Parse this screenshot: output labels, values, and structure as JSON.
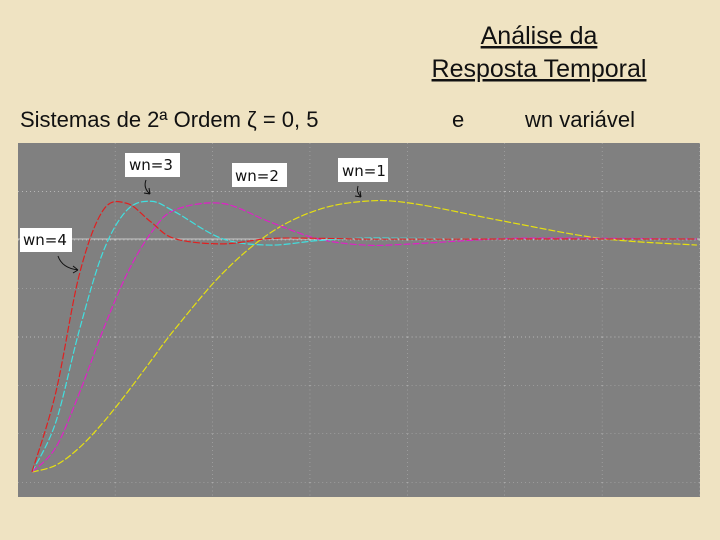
{
  "slide": {
    "title_lines": [
      "Análise da",
      "Resposta Temporal"
    ],
    "subtitle": "Sistemas de 2ª Ordem  ζ = 0, 5",
    "conjunction": "e",
    "variable_note": "wn variável"
  },
  "chart_data": {
    "type": "line",
    "x": [
      0,
      0.25,
      0.5,
      0.75,
      1,
      1.25,
      1.5,
      2,
      2.5,
      3,
      3.5,
      4,
      5,
      6,
      7
    ],
    "xlim": [
      -0.147,
      7.032
    ],
    "ylim": [
      -0.107,
      1.412
    ],
    "series": [
      {
        "name": "wn=1",
        "color": "#e6e010",
        "values": [
          0,
          0.029,
          0.105,
          0.213,
          0.34,
          0.476,
          0.611,
          0.85,
          1.024,
          1.124,
          1.162,
          1.153,
          1.074,
          1.002,
          0.974
        ]
      },
      {
        "name": "wn=2",
        "color": "#e020c8",
        "values": [
          0,
          0.105,
          0.34,
          0.611,
          0.85,
          1.024,
          1.124,
          1.153,
          1.074,
          1.002,
          0.974,
          0.979,
          1.002,
          1.003,
          1
        ]
      },
      {
        "name": "wn=3",
        "color": "#40e0e0",
        "values": [
          0,
          0.213,
          0.611,
          0.946,
          1.124,
          1.162,
          1.118,
          1.002,
          0.974,
          0.993,
          1.004,
          1.003,
          1,
          1,
          1
        ]
      },
      {
        "name": "wn=4",
        "color": "#e02020",
        "values": [
          0,
          0.34,
          0.85,
          1.124,
          1.153,
          1.074,
          1.002,
          0.979,
          1.002,
          1.003,
          1,
          1,
          1,
          1,
          1
        ]
      }
    ]
  }
}
